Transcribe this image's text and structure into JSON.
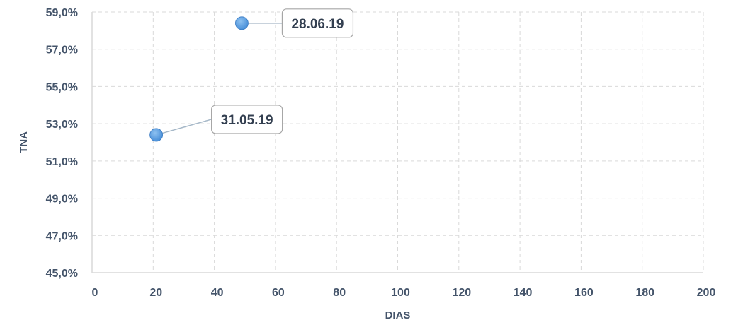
{
  "chart_data": {
    "type": "scatter",
    "title": "",
    "xlabel": "DIAS",
    "ylabel": "TNA",
    "xlim": [
      0,
      200
    ],
    "ylim": [
      45.0,
      59.0
    ],
    "x_ticks": [
      "0",
      "20",
      "40",
      "60",
      "80",
      "100",
      "120",
      "140",
      "160",
      "180",
      "200"
    ],
    "y_ticks": [
      "45,0%",
      "47,0%",
      "49,0%",
      "51,0%",
      "53,0%",
      "55,0%",
      "57,0%",
      "59,0%"
    ],
    "grid": true,
    "legend": "none",
    "colors": {
      "point": "#4a90d9",
      "axis": "#44546a",
      "grid": "#d9d9d9",
      "callout_border": "#a6a6a6",
      "leader": "#a6b8c8"
    },
    "points": [
      {
        "x": 21,
        "y": 52.4,
        "label": "31.05.19"
      },
      {
        "x": 49,
        "y": 58.4,
        "label": "28.06.19"
      }
    ]
  }
}
